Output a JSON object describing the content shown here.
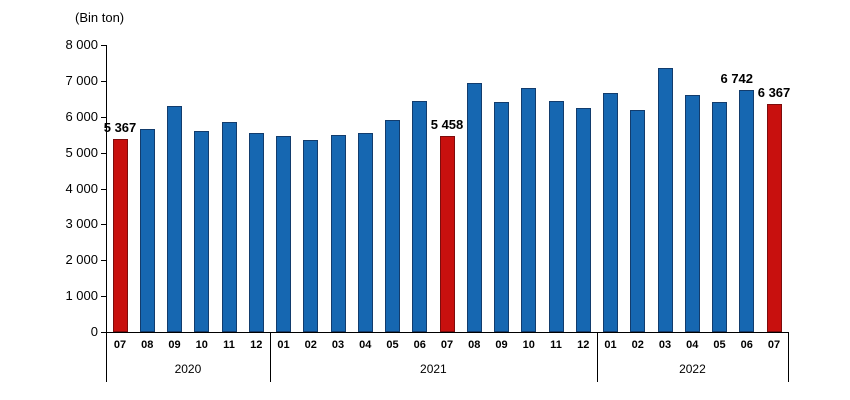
{
  "chart_data": {
    "type": "bar",
    "unit_label": "(Bin ton)",
    "title": "",
    "xlabel": "",
    "ylabel": "(Bin ton)",
    "ylim": [
      0,
      8000
    ],
    "ytick_step": 1000,
    "ytick_labels": [
      "0",
      "1 000",
      "2 000",
      "3 000",
      "4 000",
      "5 000",
      "6 000",
      "7 000",
      "8 000"
    ],
    "grid": "off",
    "legend": "none",
    "colors": {
      "bar_fill": "#1667B1",
      "bar_border": "#123C6D",
      "highlight_fill": "#C8100E",
      "highlight_border": "#7D0C0C",
      "axis": "#000000",
      "text": "#000000"
    },
    "groups": [
      {
        "year": "2020",
        "points": [
          {
            "month": "07",
            "value": 5367,
            "highlight": true,
            "label": "5 367"
          },
          {
            "month": "08",
            "value": 5650,
            "highlight": false,
            "label": ""
          },
          {
            "month": "09",
            "value": 6300,
            "highlight": false,
            "label": ""
          },
          {
            "month": "10",
            "value": 5600,
            "highlight": false,
            "label": ""
          },
          {
            "month": "11",
            "value": 5850,
            "highlight": false,
            "label": ""
          },
          {
            "month": "12",
            "value": 5550,
            "highlight": false,
            "label": ""
          }
        ]
      },
      {
        "year": "2021",
        "points": [
          {
            "month": "01",
            "value": 5450,
            "highlight": false,
            "label": ""
          },
          {
            "month": "02",
            "value": 5350,
            "highlight": false,
            "label": ""
          },
          {
            "month": "03",
            "value": 5500,
            "highlight": false,
            "label": ""
          },
          {
            "month": "04",
            "value": 5550,
            "highlight": false,
            "label": ""
          },
          {
            "month": "05",
            "value": 5900,
            "highlight": false,
            "label": ""
          },
          {
            "month": "06",
            "value": 6450,
            "highlight": false,
            "label": ""
          },
          {
            "month": "07",
            "value": 5458,
            "highlight": true,
            "label": "5 458"
          },
          {
            "month": "08",
            "value": 6950,
            "highlight": false,
            "label": ""
          },
          {
            "month": "09",
            "value": 6400,
            "highlight": false,
            "label": ""
          },
          {
            "month": "10",
            "value": 6800,
            "highlight": false,
            "label": ""
          },
          {
            "month": "11",
            "value": 6450,
            "highlight": false,
            "label": ""
          },
          {
            "month": "12",
            "value": 6250,
            "highlight": false,
            "label": ""
          }
        ]
      },
      {
        "year": "2022",
        "points": [
          {
            "month": "01",
            "value": 6650,
            "highlight": false,
            "label": ""
          },
          {
            "month": "02",
            "value": 6200,
            "highlight": false,
            "label": ""
          },
          {
            "month": "03",
            "value": 7350,
            "highlight": false,
            "label": ""
          },
          {
            "month": "04",
            "value": 6600,
            "highlight": false,
            "label": ""
          },
          {
            "month": "05",
            "value": 6400,
            "highlight": false,
            "label": ""
          },
          {
            "month": "06",
            "value": 6742,
            "highlight": false,
            "label": "6 742",
            "label_dx": -10
          },
          {
            "month": "07",
            "value": 6367,
            "highlight": true,
            "label": "6 367"
          }
        ]
      }
    ]
  }
}
